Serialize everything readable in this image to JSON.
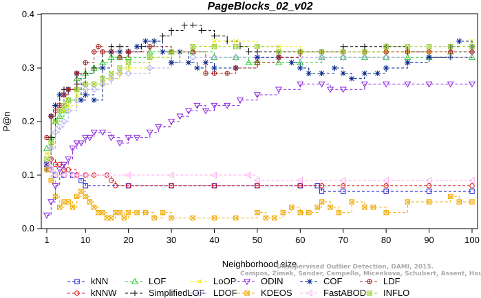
{
  "chart_data": {
    "type": "line",
    "title": "PageBlocks_02_v02",
    "xlabel": "Neighborhood size",
    "ylabel": "P@n",
    "xlim": [
      1,
      100
    ],
    "ylim": [
      0,
      0.4
    ],
    "xticks": [
      1,
      10,
      20,
      30,
      40,
      50,
      60,
      70,
      80,
      90,
      100
    ],
    "yticks": [
      0.0,
      0.1,
      0.2,
      0.3,
      0.4
    ],
    "ytick_labels": [
      "0.0",
      "0.1",
      "0.2",
      "0.3",
      "0.4"
    ],
    "grid": false,
    "legend_position": "bottom",
    "watermark_lines": [
      "Unsupervised Outlier Detection, DAMI, 2015.",
      "Campos, Zimek, Sander, Campello, Micenkova, Schubert, Assent, Houle"
    ],
    "series": [
      {
        "name": "kNN",
        "color": "#1f1fcc",
        "marker": "square",
        "x": [
          1,
          2,
          3,
          5,
          7,
          9,
          10,
          20,
          30,
          40,
          50,
          60,
          64,
          65,
          70,
          80,
          90,
          100
        ],
        "y": [
          0.12,
          0.11,
          0.1,
          0.1,
          0.1,
          0.09,
          0.08,
          0.08,
          0.08,
          0.08,
          0.08,
          0.08,
          0.08,
          0.07,
          0.07,
          0.07,
          0.07,
          0.07
        ]
      },
      {
        "name": "kNNW",
        "color": "#dd1111",
        "marker": "circle",
        "x": [
          1,
          2,
          3,
          4,
          5,
          6,
          8,
          10,
          12,
          15,
          16,
          17,
          20,
          30,
          40,
          50,
          60,
          65,
          70,
          80,
          90,
          100
        ],
        "y": [
          0.12,
          0.13,
          0.12,
          0.12,
          0.11,
          0.11,
          0.1,
          0.1,
          0.1,
          0.1,
          0.09,
          0.08,
          0.08,
          0.08,
          0.08,
          0.08,
          0.08,
          0.08,
          0.08,
          0.08,
          0.08,
          0.08
        ]
      },
      {
        "name": "LOF",
        "color": "#22cc22",
        "marker": "triangle-up",
        "x": [
          1,
          2,
          3,
          4,
          5,
          6,
          8,
          10,
          12,
          14,
          16,
          18,
          20,
          25,
          30,
          35,
          40,
          45,
          48,
          50,
          55,
          60,
          65,
          70,
          75,
          80,
          85,
          90,
          95,
          100
        ],
        "y": [
          0.15,
          0.17,
          0.2,
          0.21,
          0.22,
          0.24,
          0.28,
          0.29,
          0.3,
          0.31,
          0.32,
          0.32,
          0.32,
          0.33,
          0.33,
          0.33,
          0.32,
          0.32,
          0.31,
          0.31,
          0.31,
          0.31,
          0.32,
          0.32,
          0.32,
          0.32,
          0.32,
          0.32,
          0.33,
          0.32
        ]
      },
      {
        "name": "SimplifiedLOF",
        "color": "#000000",
        "marker": "plus",
        "x": [
          1,
          2,
          3,
          4,
          5,
          6,
          8,
          10,
          12,
          14,
          16,
          18,
          20,
          23,
          26,
          28,
          30,
          33,
          35,
          37,
          40,
          43,
          46,
          48,
          50,
          55,
          60,
          65,
          70,
          75,
          80,
          85,
          90,
          95,
          100
        ],
        "y": [
          0.11,
          0.17,
          0.23,
          0.25,
          0.26,
          0.26,
          0.27,
          0.29,
          0.3,
          0.33,
          0.34,
          0.34,
          0.33,
          0.34,
          0.35,
          0.36,
          0.37,
          0.38,
          0.38,
          0.37,
          0.36,
          0.35,
          0.34,
          0.33,
          0.33,
          0.33,
          0.33,
          0.33,
          0.34,
          0.34,
          0.34,
          0.33,
          0.32,
          0.32,
          0.33
        ]
      },
      {
        "name": "LoOP",
        "color": "#e8e800",
        "marker": "x",
        "x": [
          1,
          2,
          3,
          4,
          5,
          6,
          8,
          10,
          12,
          14,
          16,
          18,
          20,
          25,
          30,
          35,
          40,
          45,
          50,
          55,
          60,
          65,
          70,
          75,
          80,
          85,
          90,
          95,
          100
        ],
        "y": [
          0.14,
          0.16,
          0.2,
          0.22,
          0.22,
          0.23,
          0.25,
          0.27,
          0.27,
          0.27,
          0.28,
          0.29,
          0.3,
          0.32,
          0.33,
          0.34,
          0.35,
          0.35,
          0.34,
          0.34,
          0.33,
          0.33,
          0.33,
          0.33,
          0.33,
          0.33,
          0.33,
          0.34,
          0.35
        ]
      },
      {
        "name": "LDOF",
        "color": "#aaaaee",
        "marker": "diamond",
        "x": [
          1,
          2,
          3,
          4,
          5,
          6,
          8,
          10,
          12,
          14,
          16,
          18,
          20,
          25,
          30,
          35,
          40,
          45,
          50,
          55,
          60,
          65,
          70,
          75,
          80,
          85,
          90,
          95,
          100
        ],
        "y": [
          0.12,
          0.15,
          0.18,
          0.19,
          0.2,
          0.22,
          0.24,
          0.26,
          0.26,
          0.27,
          0.28,
          0.29,
          0.29,
          0.3,
          0.31,
          0.32,
          0.32,
          0.32,
          0.32,
          0.32,
          0.32,
          0.32,
          0.32,
          0.32,
          0.32,
          0.31,
          0.32,
          0.32,
          0.33
        ]
      },
      {
        "name": "ODIN",
        "color": "#8822dd",
        "marker": "triangle-down",
        "x": [
          1,
          2,
          3,
          4,
          5,
          6,
          7,
          8,
          9,
          10,
          11,
          12,
          14,
          16,
          18,
          20,
          22,
          25,
          27,
          30,
          32,
          34,
          36,
          38,
          40,
          43,
          46,
          50,
          55,
          60,
          65,
          67,
          70,
          75,
          80,
          85,
          90,
          95,
          100
        ],
        "y": [
          0.025,
          0.05,
          0.08,
          0.11,
          0.12,
          0.13,
          0.15,
          0.16,
          0.16,
          0.17,
          0.17,
          0.18,
          0.18,
          0.17,
          0.16,
          0.17,
          0.17,
          0.18,
          0.19,
          0.2,
          0.21,
          0.22,
          0.23,
          0.22,
          0.23,
          0.23,
          0.24,
          0.25,
          0.26,
          0.27,
          0.27,
          0.26,
          0.26,
          0.27,
          0.27,
          0.27,
          0.27,
          0.27,
          0.27
        ]
      },
      {
        "name": "KDEOS",
        "color": "#f0a800",
        "marker": "square-x",
        "x": [
          1,
          2,
          3,
          4,
          5,
          6,
          7,
          8,
          9,
          10,
          11,
          12,
          13,
          14,
          15,
          16,
          17,
          18,
          19,
          20,
          22,
          24,
          26,
          28,
          30,
          35,
          40,
          45,
          50,
          52,
          54,
          56,
          58,
          60,
          62,
          64,
          65,
          67,
          69,
          72,
          75,
          77,
          80,
          85,
          90,
          95,
          97,
          100
        ],
        "y": [
          0.11,
          0.09,
          0.06,
          0.04,
          0.05,
          0.05,
          0.04,
          0.06,
          0.07,
          0.06,
          0.05,
          0.04,
          0.03,
          0.03,
          0.02,
          0.02,
          0.03,
          0.03,
          0.02,
          0.03,
          0.03,
          0.03,
          0.02,
          0.03,
          0.02,
          0.02,
          0.02,
          0.02,
          0.03,
          0.02,
          0.02,
          0.03,
          0.04,
          0.03,
          0.03,
          0.04,
          0.05,
          0.04,
          0.03,
          0.05,
          0.04,
          0.04,
          0.03,
          0.05,
          0.05,
          0.06,
          0.05,
          0.05
        ]
      },
      {
        "name": "COF",
        "color": "#002288",
        "marker": "asterisk",
        "x": [
          1,
          2,
          3,
          4,
          5,
          6,
          8,
          9,
          10,
          12,
          14,
          16,
          18,
          20,
          22,
          24,
          26,
          28,
          30,
          32,
          34,
          36,
          38,
          40,
          45,
          50,
          55,
          58,
          60,
          62,
          65,
          68,
          70,
          72,
          75,
          78,
          80,
          85,
          90,
          95,
          97,
          100
        ],
        "y": [
          0.12,
          0.21,
          0.23,
          0.25,
          0.25,
          0.26,
          0.29,
          0.24,
          0.25,
          0.24,
          0.3,
          0.33,
          0.33,
          0.33,
          0.34,
          0.35,
          0.35,
          0.33,
          0.31,
          0.33,
          0.31,
          0.3,
          0.31,
          0.3,
          0.3,
          0.32,
          0.32,
          0.31,
          0.3,
          0.29,
          0.29,
          0.3,
          0.29,
          0.28,
          0.29,
          0.29,
          0.3,
          0.31,
          0.32,
          0.34,
          0.35,
          0.34
        ]
      },
      {
        "name": "FastABOD",
        "color": "#ffaaee",
        "marker": "triangle-left",
        "x": [
          1,
          2,
          3,
          5,
          7,
          8,
          10,
          15,
          20,
          30,
          40,
          48,
          50,
          60,
          70,
          80,
          90,
          100
        ],
        "y": [
          0.12,
          0.11,
          0.1,
          0.1,
          0.1,
          0.1,
          0.1,
          0.1,
          0.1,
          0.1,
          0.1,
          0.1,
          0.09,
          0.09,
          0.09,
          0.09,
          0.09,
          0.09
        ]
      },
      {
        "name": "LDF",
        "color": "#aa2222",
        "marker": "circle-plus",
        "x": [
          1,
          2,
          3,
          4,
          5,
          6,
          8,
          10,
          12,
          13,
          14,
          16,
          18,
          20,
          25,
          30,
          35,
          38,
          40,
          43,
          45,
          50,
          55,
          60,
          65,
          70,
          75,
          80,
          85,
          90,
          95,
          100
        ],
        "y": [
          0.17,
          0.21,
          0.22,
          0.23,
          0.25,
          0.26,
          0.29,
          0.31,
          0.33,
          0.34,
          0.33,
          0.33,
          0.32,
          0.33,
          0.34,
          0.33,
          0.33,
          0.29,
          0.29,
          0.29,
          0.3,
          0.31,
          0.32,
          0.33,
          0.33,
          0.33,
          0.33,
          0.33,
          0.33,
          0.33,
          0.33,
          0.33
        ]
      },
      {
        "name": "INFLO",
        "color": "#99cc33",
        "marker": "square-x",
        "x": [
          1,
          2,
          3,
          4,
          5,
          6,
          8,
          10,
          12,
          14,
          16,
          18,
          20,
          25,
          30,
          35,
          40,
          45,
          50,
          55,
          60,
          65,
          70,
          75,
          80,
          85,
          90,
          95,
          100
        ],
        "y": [
          0.13,
          0.16,
          0.2,
          0.22,
          0.23,
          0.24,
          0.26,
          0.27,
          0.27,
          0.28,
          0.29,
          0.3,
          0.31,
          0.32,
          0.33,
          0.34,
          0.34,
          0.34,
          0.34,
          0.33,
          0.33,
          0.33,
          0.33,
          0.33,
          0.34,
          0.34,
          0.34,
          0.34,
          0.34
        ]
      }
    ]
  }
}
